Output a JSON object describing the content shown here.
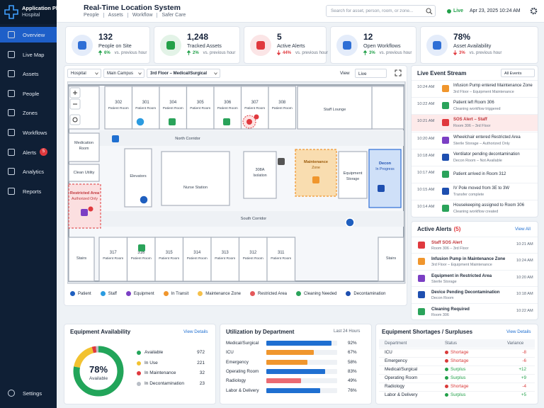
{
  "sidebar": {
    "brand": "Application Platform",
    "sub": "Hospital",
    "nav": [
      {
        "label": "Overview",
        "active": true
      },
      {
        "label": "Live Map"
      },
      {
        "label": "Assets"
      },
      {
        "label": "People"
      },
      {
        "label": "Zones"
      },
      {
        "label": "Workflows"
      },
      {
        "label": "Alerts",
        "badge": "5"
      },
      {
        "label": "Analytics"
      },
      {
        "label": "Reports"
      }
    ],
    "settings": "Settings"
  },
  "header": {
    "title": "Real-Time Location System",
    "tabs": [
      "People",
      "Assets",
      "Workflow",
      "Safer Care"
    ],
    "search": "Search for asset, person, room, or zone...",
    "status": "Live",
    "date": "Apr 23, 2025",
    "time": "10:24 AM"
  },
  "kpis": [
    {
      "value": "132",
      "label": "People on Site",
      "change": "6%",
      "note": "vs. previous hour",
      "dir": "up",
      "color": "#2f6fd6"
    },
    {
      "value": "1,248",
      "label": "Tracked Assets",
      "change": "2%",
      "note": "vs. previous hour",
      "dir": "up",
      "color": "#24a148"
    },
    {
      "value": "5",
      "label": "Active Alerts",
      "change": "44%",
      "note": "vs. previous hour",
      "dir": "down",
      "color": "#e0393e"
    },
    {
      "value": "12",
      "label": "Open Workflows",
      "change": "3%",
      "note": "vs. previous hour",
      "dir": "up",
      "color": "#2f6fd6"
    },
    {
      "value": "78%",
      "label": "Asset Availability",
      "change": "3%",
      "note": "vs. previous hour",
      "dir": "down",
      "color": "#2f6fd6"
    }
  ],
  "map": {
    "breadcrumbs": [
      "Hospital",
      "Main Campus",
      "3rd Floor – Medical/Surgical"
    ],
    "view_label": "View",
    "view": "Live",
    "top_rooms": [
      {
        "number": "302",
        "label": "Patient Room"
      },
      {
        "number": "301",
        "label": "Patient Room"
      },
      {
        "number": "304",
        "label": "Patient Room"
      },
      {
        "number": "305",
        "label": "Patient Room"
      },
      {
        "number": "306",
        "label": "Patient Room"
      },
      {
        "number": "307",
        "label": "Patient Room"
      },
      {
        "number": "308",
        "label": "Patient Room"
      }
    ],
    "bottom_rooms": [
      {
        "number": "317",
        "label": "Patient Room"
      },
      {
        "number": "316",
        "label": "Patient Room"
      },
      {
        "number": "315",
        "label": "Patient Room"
      },
      {
        "number": "314",
        "label": "Patient Room"
      },
      {
        "number": "313",
        "label": "Patient Room"
      },
      {
        "number": "312",
        "label": "Patient Room"
      },
      {
        "number": "311",
        "label": "Patient Room"
      }
    ],
    "zones": [
      {
        "label": "Staff Lounge"
      },
      {
        "label": "Medication",
        "sub": "Room"
      },
      {
        "label": "Clean Utility"
      },
      {
        "label": "Restricted Area",
        "sub": "Authorized Only"
      },
      {
        "label": "Elevators"
      },
      {
        "label": "Nurse Station"
      },
      {
        "label": "308A",
        "sub": "Isolation"
      },
      {
        "label": "Maintenance",
        "sub": "Zone"
      },
      {
        "label": "Equipment",
        "sub": "Storage"
      },
      {
        "label": "Decon",
        "sub": "In Progress"
      },
      {
        "label": "North Corridor"
      },
      {
        "label": "South Corridor"
      },
      {
        "label": "Stairs"
      },
      {
        "label": "Stairs"
      }
    ],
    "legend": [
      {
        "name": "Patient",
        "color": "#1f5fbf"
      },
      {
        "name": "Staff",
        "color": "#2b9be0"
      },
      {
        "name": "Equipment",
        "color": "#7b3fc4"
      },
      {
        "name": "In Transit",
        "color": "#f0962d"
      },
      {
        "name": "Maintenance Zone",
        "color": "#f5c04a"
      },
      {
        "name": "Restricted Area",
        "color": "#e4595b"
      },
      {
        "name": "Cleaning Needed",
        "color": "#2aa35a"
      },
      {
        "name": "Decontamination",
        "color": "#1e4fb0"
      }
    ]
  },
  "events": {
    "title": "Live Event Stream",
    "filter": "All Events",
    "items": [
      {
        "time": "10:24 AM",
        "title": "Infusion Pump entered Maintenance Zone",
        "sub": "3rd Floor – Equipment Maintenance",
        "color": "#f0962d"
      },
      {
        "time": "10:22 AM",
        "title": "Patient left Room 306",
        "sub": "Cleaning workflow triggered",
        "color": "#2aa35a"
      },
      {
        "time": "10:21 AM",
        "title": "SOS Alert – Staff",
        "sub": "Room 306 – 3rd Floor",
        "color": "#e0393e",
        "highlight": true
      },
      {
        "time": "10:20 AM",
        "title": "Wheelchair entered Restricted Area",
        "sub": "Sterile Storage – Authorized Only",
        "color": "#7b3fc4"
      },
      {
        "time": "10:18 AM",
        "title": "Ventilator pending decontamination",
        "sub": "Decon Room – Not Available",
        "color": "#1e4fb0"
      },
      {
        "time": "10:17 AM",
        "title": "Patient arrived in Room 312",
        "color": "#2aa35a"
      },
      {
        "time": "10:15 AM",
        "title": "IV Pole moved from 3E to 3W",
        "sub": "Transfer complete",
        "color": "#1e4fb0"
      },
      {
        "time": "10:14 AM",
        "title": "Housekeeping assigned to Room 306",
        "sub": "Cleaning workflow created",
        "color": "#2aa35a"
      }
    ]
  },
  "alerts": {
    "title": "Active Alerts",
    "count": "(5)",
    "link": "View All",
    "items": [
      {
        "title": "Staff SOS Alert",
        "sub": "Room 306 – 3rd Floor",
        "time": "10:21 AM",
        "color": "#e0393e"
      },
      {
        "title": "Infusion Pump in Maintenance Zone",
        "sub": "3rd Floor – Equipment Maintenance",
        "time": "10:24 AM",
        "color": "#f0962d"
      },
      {
        "title": "Equipment in Restricted Area",
        "sub": "Sterile Storage",
        "time": "10:20 AM",
        "color": "#7b3fc4"
      },
      {
        "title": "Device Pending Decontamination",
        "sub": "Decon Room",
        "time": "10:18 AM",
        "color": "#1e4fb0"
      },
      {
        "title": "Cleaning Required",
        "sub": "Room 306",
        "time": "10:22 AM",
        "color": "#2aa35a"
      }
    ]
  },
  "availability": {
    "title": "Equipment Availability",
    "link": "View Details",
    "center_value": "78%",
    "center_label": "Available",
    "items": [
      {
        "name": "Available",
        "value": 972,
        "color": "#22a55a"
      },
      {
        "name": "In Use",
        "value": 221,
        "color": "#f2c230"
      },
      {
        "name": "In Maintenance",
        "value": 32,
        "color": "#e0393e"
      },
      {
        "name": "In Decontamination",
        "value": 23,
        "color": "#b9bec6"
      }
    ]
  },
  "utilization": {
    "title": "Utilization by Department",
    "range": "Last 24 Hours",
    "xlim": [
      0,
      100
    ],
    "items": [
      {
        "name": "Medical/Surgical",
        "value": 92,
        "value_label": "92%",
        "color": "#1f6fd1"
      },
      {
        "name": "ICU",
        "value": 67,
        "value_label": "67%",
        "color": "#f0962d"
      },
      {
        "name": "Emergency",
        "value": 58,
        "value_label": "58%",
        "color": "#f0962d"
      },
      {
        "name": "Operating Room",
        "value": 83,
        "value_label": "83%",
        "color": "#1f6fd1"
      },
      {
        "name": "Radiology",
        "value": 49,
        "value_label": "49%",
        "color": "#ea6b73"
      },
      {
        "name": "Labor & Delivery",
        "value": 76,
        "value_label": "76%",
        "color": "#1f6fd1"
      }
    ]
  },
  "shortages": {
    "title": "Equipment Shortages / Surpluses",
    "link": "View Details",
    "headers": [
      "Department",
      "Status",
      "Variance"
    ],
    "rows": [
      {
        "department": "ICU",
        "status": "Shortage",
        "variance": "-8",
        "color": "#d93a3a"
      },
      {
        "department": "Emergency",
        "status": "Shortage",
        "variance": "-6",
        "color": "#d93a3a"
      },
      {
        "department": "Medical/Surgical",
        "status": "Surplus",
        "variance": "+12",
        "color": "#21a049"
      },
      {
        "department": "Operating Room",
        "status": "Surplus",
        "variance": "+9",
        "color": "#21a049"
      },
      {
        "department": "Radiology",
        "status": "Shortage",
        "variance": "-4",
        "color": "#d93a3a"
      },
      {
        "department": "Labor & Delivery",
        "status": "Surplus",
        "variance": "+5",
        "color": "#21a049"
      }
    ]
  }
}
